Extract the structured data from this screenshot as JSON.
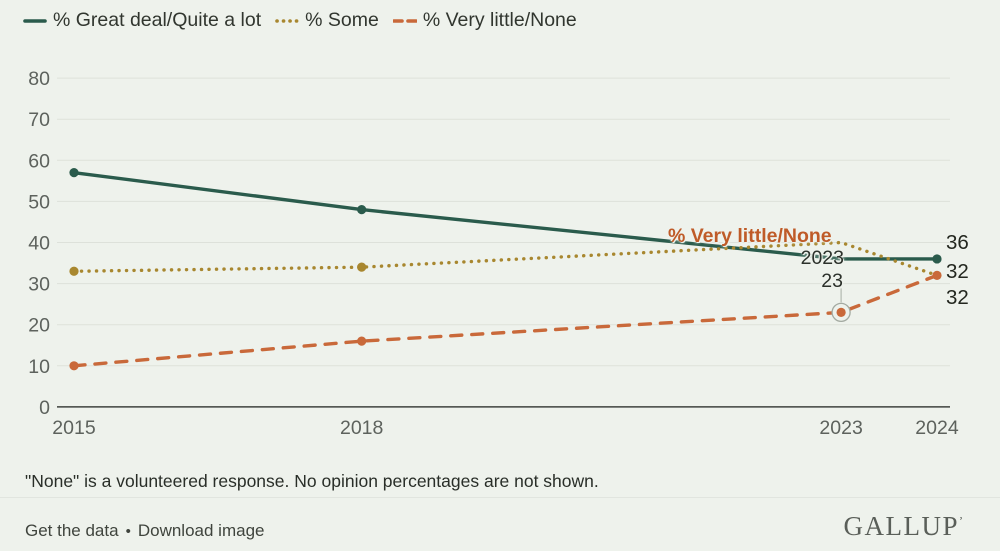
{
  "colors": {
    "background": "#eef2ec",
    "great_deal_green": "#2a5b4c",
    "some_olive": "#a8872f",
    "very_little_orange": "#c9693a",
    "annotation_orange": "#bf5b28",
    "grid": "#dde1da",
    "axis": "#3f433f",
    "tick_text": "#5d625d",
    "callout_ring": "#a3aaa1",
    "callout_connector": "#b3b9b0"
  },
  "legend": {
    "items": [
      {
        "label": "% Great deal/Quite a lot",
        "style": "solid",
        "color": "#2a5b4c"
      },
      {
        "label": "% Some",
        "style": "dotted",
        "color": "#a8872f"
      },
      {
        "label": "% Very little/None",
        "style": "dashed",
        "color": "#c9693a"
      }
    ]
  },
  "chart_data": {
    "type": "line",
    "x": [
      2015,
      2018,
      2023,
      2024
    ],
    "xtick_labels": [
      "2015",
      "2018",
      "2023",
      "2024"
    ],
    "yticks": [
      0,
      10,
      20,
      30,
      40,
      50,
      60,
      70,
      80
    ],
    "ylim": [
      0,
      80
    ],
    "grid": "horizontal",
    "legend_position": "top-left",
    "series": [
      {
        "name": "% Great deal/Quite a lot",
        "values": [
          57,
          48,
          36,
          36
        ],
        "color": "#2a5b4c",
        "style": "solid",
        "marker_years": [
          2015,
          2018,
          2024
        ]
      },
      {
        "name": "% Some",
        "values": [
          33,
          34,
          40,
          32
        ],
        "color": "#a8872f",
        "style": "dotted",
        "marker_years": [
          2015,
          2018
        ]
      },
      {
        "name": "% Very little/None",
        "values": [
          10,
          16,
          23,
          32
        ],
        "color": "#c9693a",
        "style": "dashed",
        "marker_years": [
          2015,
          2018,
          2023,
          2024
        ]
      }
    ],
    "annotations": {
      "series_label": "% Very little/None",
      "callout_year_label": "2023",
      "callout_value_label": "23",
      "callout": {
        "series": "% Very little/None",
        "year": 2023,
        "value": 23
      },
      "end_labels": [
        "36",
        "32",
        "32"
      ]
    }
  },
  "note": "\"None\" is a volunteered response. No opinion percentages are not shown.",
  "footer": {
    "get_data_label": "Get the data",
    "separator": "•",
    "download_label": "Download image",
    "logo": "GALLUP",
    "logo_mark": "ʼ"
  }
}
